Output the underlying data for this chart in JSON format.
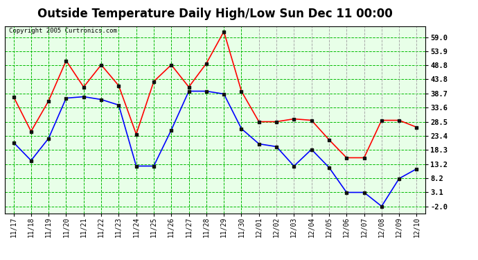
{
  "title": "Outside Temperature Daily High/Low Sun Dec 11 00:00",
  "copyright": "Copyright 2005 Curtronics.com",
  "x_labels": [
    "11/17",
    "11/18",
    "11/19",
    "11/20",
    "11/21",
    "11/22",
    "11/23",
    "11/24",
    "11/25",
    "11/26",
    "11/27",
    "11/28",
    "11/29",
    "11/30",
    "12/01",
    "12/02",
    "12/03",
    "12/04",
    "12/05",
    "12/06",
    "12/07",
    "12/08",
    "12/09",
    "12/10"
  ],
  "high_temps": [
    37.5,
    25.0,
    36.0,
    50.5,
    41.0,
    49.0,
    41.5,
    24.0,
    43.0,
    49.0,
    41.0,
    49.5,
    61.0,
    39.5,
    28.5,
    28.5,
    29.5,
    29.0,
    22.0,
    15.5,
    15.5,
    29.0,
    29.0,
    26.5
  ],
  "low_temps": [
    21.0,
    14.5,
    22.5,
    37.0,
    37.5,
    36.5,
    34.5,
    12.5,
    12.5,
    25.5,
    39.5,
    39.5,
    38.5,
    26.0,
    20.5,
    19.5,
    12.5,
    18.5,
    12.0,
    3.0,
    3.0,
    -2.0,
    8.0,
    11.5
  ],
  "high_color": "#ff0000",
  "low_color": "#0000ff",
  "bg_color": "#ffffff",
  "plot_bg_color": "#e8ffe8",
  "grid_color": "#00bb00",
  "border_color": "#000000",
  "y_ticks": [
    -2.0,
    3.1,
    8.2,
    13.2,
    18.3,
    23.4,
    28.5,
    33.6,
    38.7,
    43.8,
    48.8,
    53.9,
    59.0
  ],
  "ylim": [
    -4.5,
    63.0
  ],
  "title_fontsize": 12,
  "marker": "s",
  "markersize": 3,
  "linewidth": 1.2
}
